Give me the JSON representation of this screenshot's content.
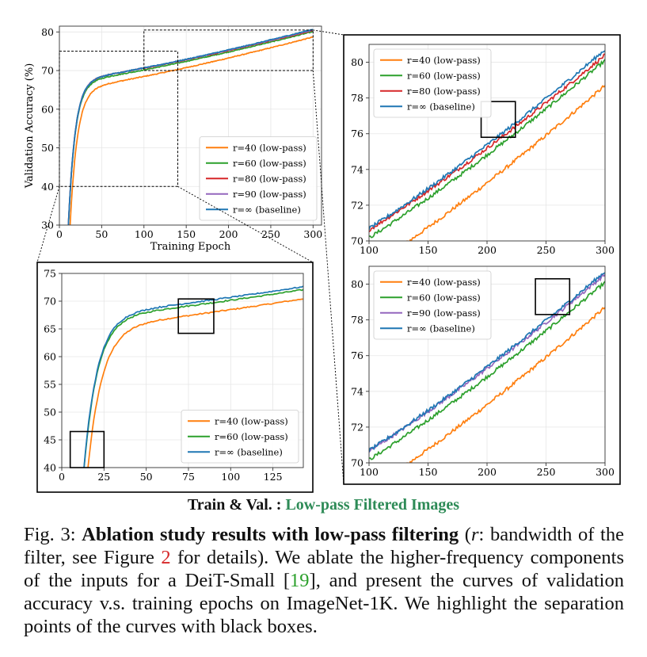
{
  "subtitle": {
    "prefix": "Train & Val. : ",
    "highlight": "Low-pass Filtered Images"
  },
  "caption": {
    "lead": "Fig. 3: ",
    "bold": "Ablation study results with low-pass filtering",
    "p1": " (",
    "r": "r",
    "p2": ": bandwidth of the filter, see Figure ",
    "ref1": "2",
    "p3": " for details). We ablate the higher-frequency components of the inputs for a DeiT-Small [",
    "ref2": "19",
    "p4": "], and present the curves of validation accuracy v.s. training epochs on ImageNet-1K. We highlight the separation points of the curves with black boxes."
  },
  "colors": {
    "r40": "#ff7f0e",
    "r60": "#2ca02c",
    "r80": "#d62728",
    "r90": "#9467bd",
    "rinf": "#1f77b4"
  },
  "chart_data": [
    {
      "id": "main",
      "type": "line",
      "xlabel": "Training Epoch",
      "ylabel": "Validation Accuracy (%)",
      "xlim": [
        0,
        310
      ],
      "ylim": [
        30,
        81.5
      ],
      "xticks": [
        0,
        50,
        100,
        150,
        200,
        250,
        300
      ],
      "yticks": [
        30,
        40,
        50,
        60,
        70,
        80
      ],
      "grid": true,
      "legend": "lower-right",
      "series": [
        {
          "key": "r40",
          "name": "r=40 (low-pass)"
        },
        {
          "key": "r60",
          "name": "r=60 (low-pass)"
        },
        {
          "key": "r80",
          "name": "r=80 (low-pass)"
        },
        {
          "key": "r90",
          "name": "r=90 (low-pass)"
        },
        {
          "key": "rinf",
          "name": "r=∞ (baseline)"
        }
      ],
      "zoom_boxes": [
        {
          "x": [
            0,
            140
          ],
          "y": [
            40,
            75
          ]
        },
        {
          "x": [
            100,
            300
          ],
          "y": [
            70,
            80.5
          ]
        }
      ]
    },
    {
      "id": "zoom-early",
      "type": "line",
      "xlim": [
        0,
        143
      ],
      "ylim": [
        40,
        75
      ],
      "xticks": [
        0,
        25,
        50,
        75,
        100,
        125
      ],
      "yticks": [
        40,
        45,
        50,
        55,
        60,
        65,
        70,
        75
      ],
      "grid": true,
      "legend": "lower-right",
      "series": [
        {
          "key": "r40",
          "name": "r=40 (low-pass)"
        },
        {
          "key": "r60",
          "name": "r=60 (low-pass)"
        },
        {
          "key": "rinf",
          "name": "r=∞ (baseline)"
        }
      ],
      "highlight_boxes": [
        {
          "x": [
            5,
            25
          ],
          "y": [
            40,
            46.5
          ]
        },
        {
          "x": [
            69,
            90
          ],
          "y": [
            64.2,
            70.4
          ]
        }
      ]
    },
    {
      "id": "zoom-late-80",
      "type": "line",
      "xlim": [
        100,
        300
      ],
      "ylim": [
        70,
        81
      ],
      "xticks": [
        100,
        150,
        200,
        250,
        300
      ],
      "yticks": [
        70,
        72,
        74,
        76,
        78,
        80
      ],
      "grid": true,
      "legend": "upper-left",
      "series": [
        {
          "key": "r40",
          "name": "r=40 (low-pass)"
        },
        {
          "key": "r60",
          "name": "r=60 (low-pass)"
        },
        {
          "key": "r80",
          "name": "r=80 (low-pass)"
        },
        {
          "key": "rinf",
          "name": "r=∞ (baseline)"
        }
      ],
      "highlight_boxes": [
        {
          "x": [
            195,
            224
          ],
          "y": [
            75.8,
            77.8
          ]
        }
      ]
    },
    {
      "id": "zoom-late-90",
      "type": "line",
      "xlim": [
        100,
        300
      ],
      "ylim": [
        70,
        81
      ],
      "xticks": [
        100,
        150,
        200,
        250,
        300
      ],
      "yticks": [
        70,
        72,
        74,
        76,
        78,
        80
      ],
      "grid": true,
      "legend": "upper-left",
      "series": [
        {
          "key": "r40",
          "name": "r=40 (low-pass)"
        },
        {
          "key": "r60",
          "name": "r=60 (low-pass)"
        },
        {
          "key": "r90",
          "name": "r=90 (low-pass)"
        },
        {
          "key": "rinf",
          "name": "r=∞ (baseline)"
        }
      ],
      "highlight_boxes": [
        {
          "x": [
            241,
            270
          ],
          "y": [
            78.3,
            80.3
          ]
        }
      ]
    }
  ]
}
